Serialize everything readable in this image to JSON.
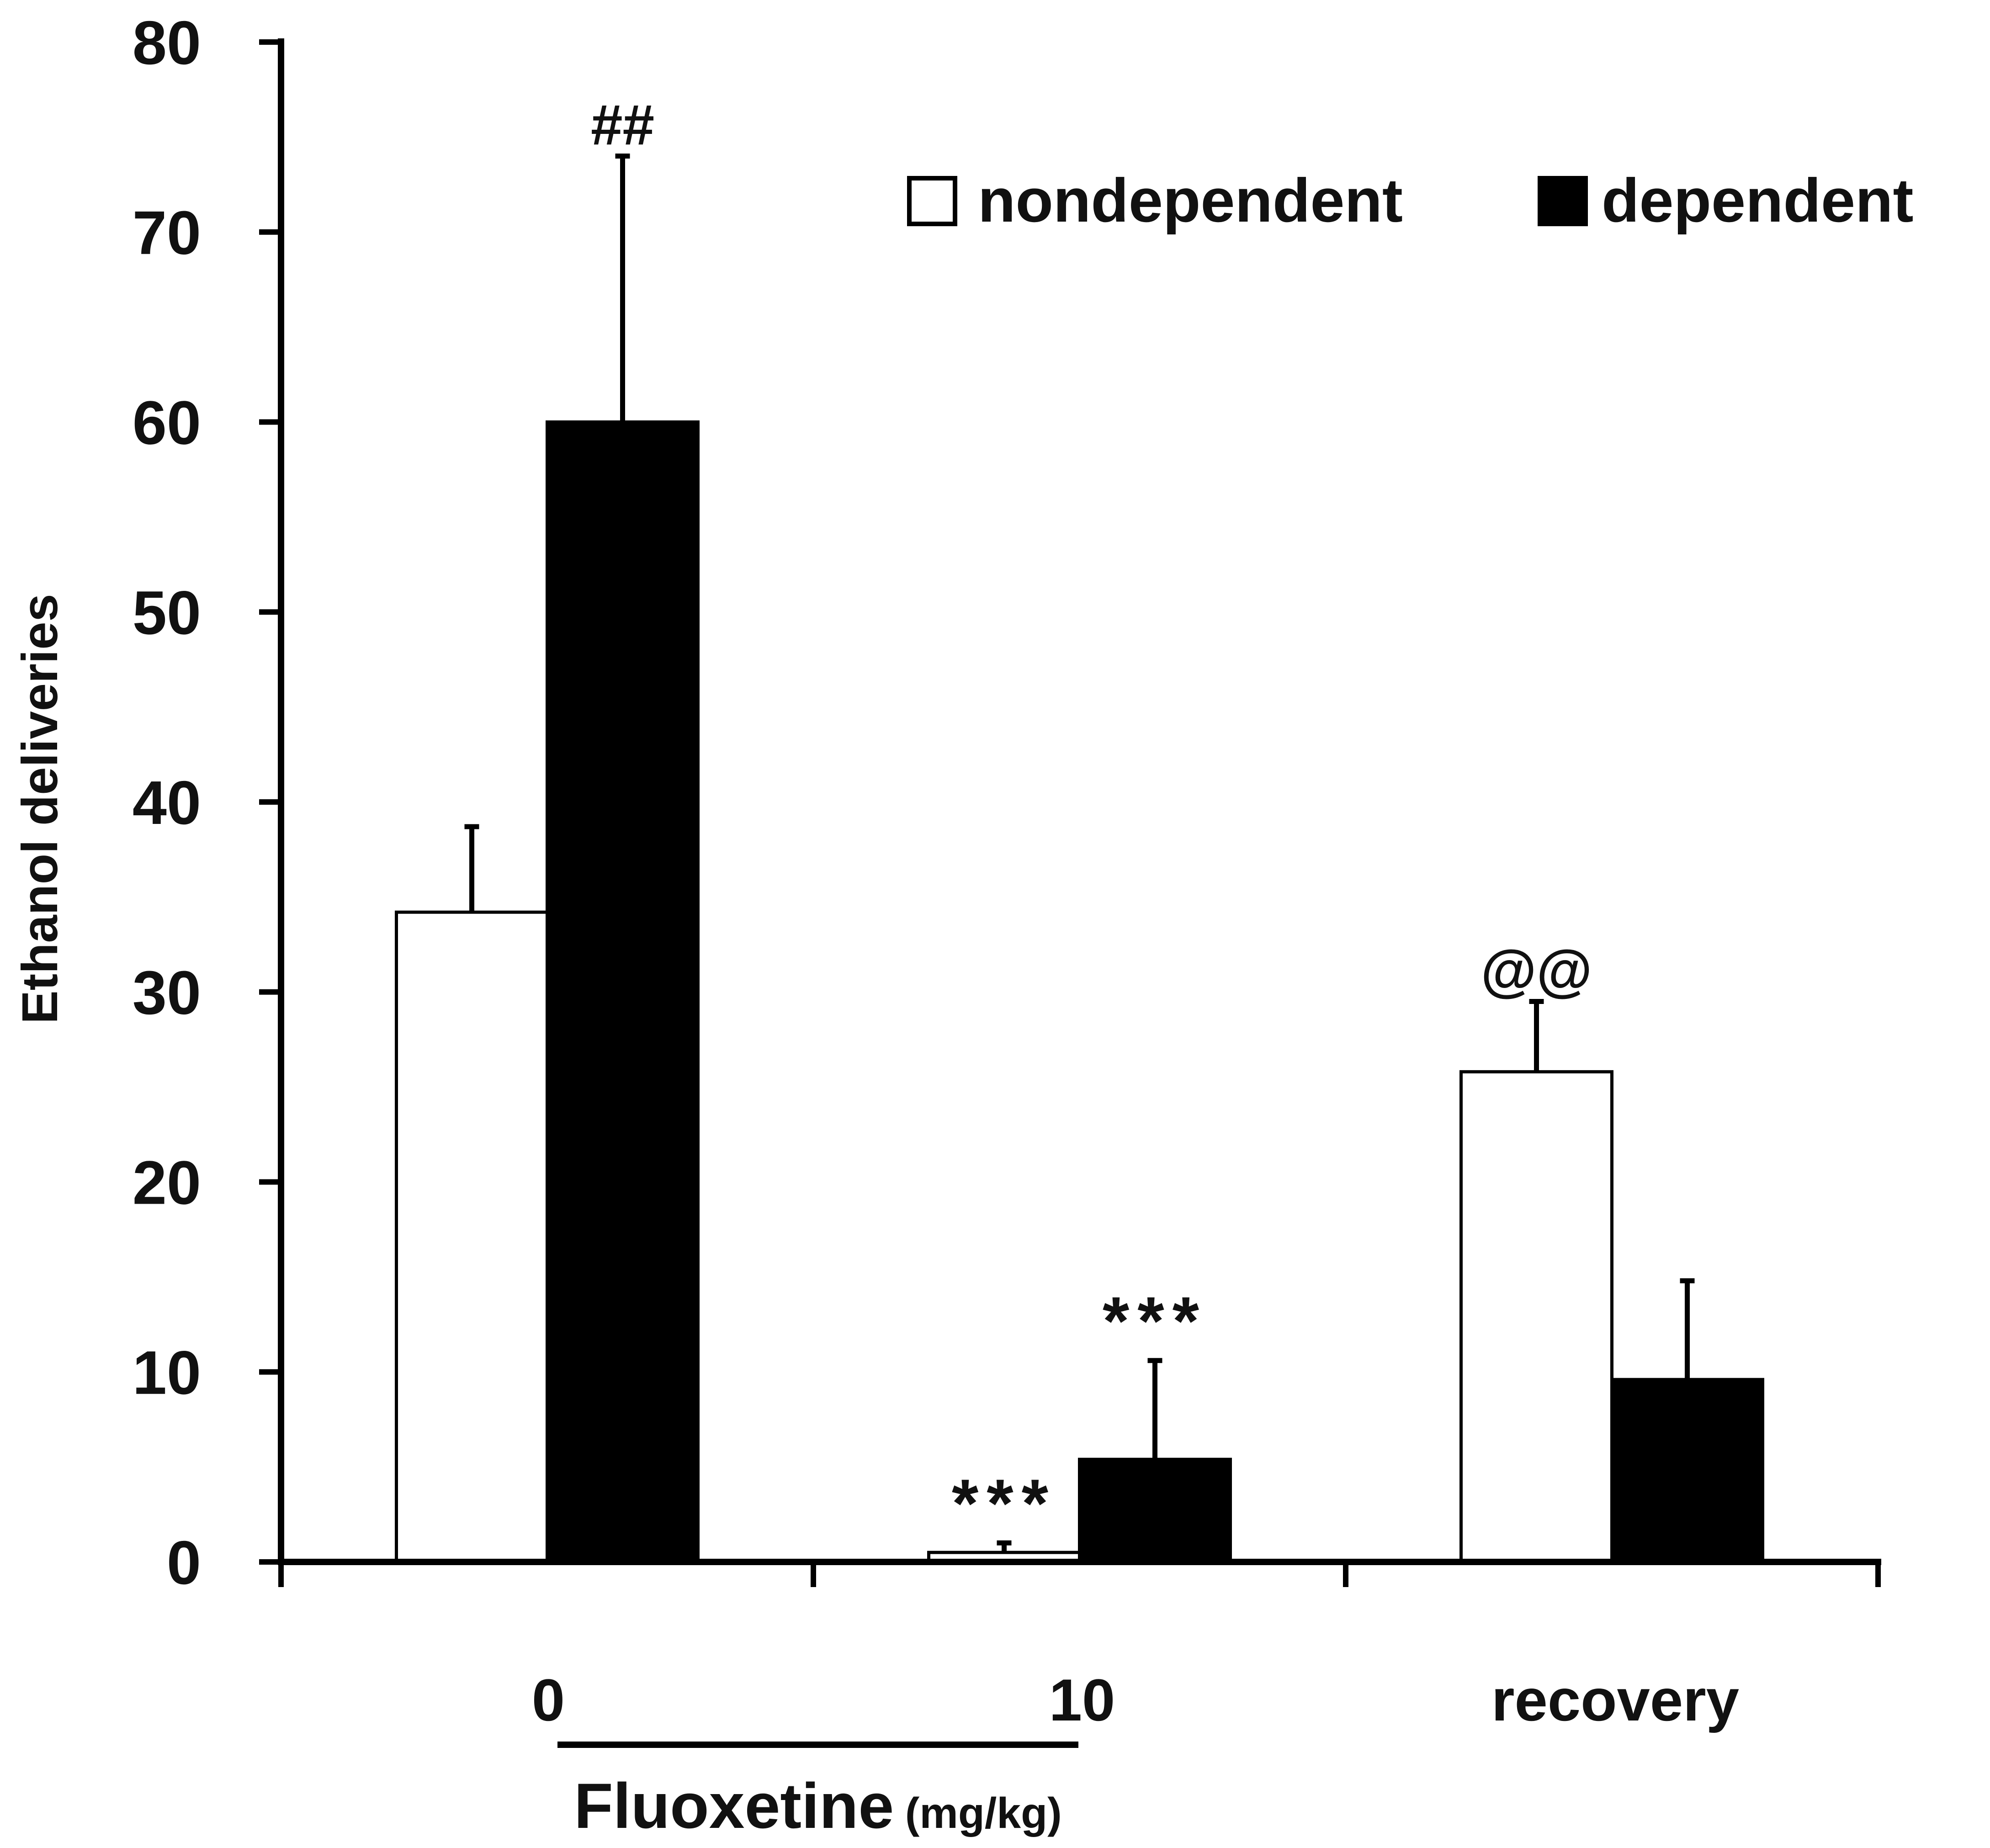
{
  "chart_data": {
    "type": "bar",
    "ylabel": "Ethanol deliveries",
    "xlabel": {
      "main": "Fluoxetine",
      "unit": "(mg/kg)"
    },
    "categories": [
      "0",
      "10",
      "recovery"
    ],
    "ylim": [
      0,
      80
    ],
    "yticks": [
      0,
      10,
      20,
      30,
      40,
      50,
      60,
      70,
      80
    ],
    "grid": false,
    "legend_position": "top-right",
    "series": [
      {
        "name": "nondependent",
        "color": "#ffffff",
        "values": [
          34.2,
          0.5,
          25.8
        ],
        "errors": [
          4.5,
          0.5,
          3.7
        ],
        "annotations": [
          "",
          "***",
          "@@"
        ]
      },
      {
        "name": "dependent",
        "color": "#000000",
        "values": [
          60.0,
          5.4,
          9.6
        ],
        "errors": [
          14.0,
          5.2,
          5.2
        ],
        "annotations": [
          "##",
          "***",
          ""
        ]
      }
    ]
  }
}
